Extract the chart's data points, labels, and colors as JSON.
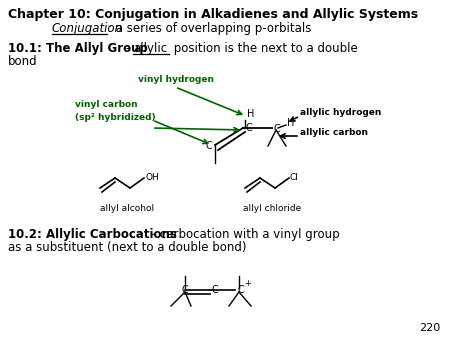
{
  "bg_color": "#ffffff",
  "title_line1": "Chapter 10: Conjugation in Alkadienes and Allylic Systems",
  "title_line2_italic": "Conjugation",
  "title_line2_rest": ": a series of overlapping p-orbitals",
  "section1_bold": "10.1: The Allyl Group",
  "vinyl_hydrogen_label": "vinyl hydrogen",
  "vinyl_carbon_label": "vinyl carbon\n(sp² hybridized)",
  "allylic_hydrogen_label": "allylic hydrogen",
  "allylic_carbon_label": "allylic carbon",
  "allyl_alcohol_label": "allyl alcohol",
  "allyl_chloride_label": "allyl chloride",
  "section2_bold": "10.2: Allylic Carbocations",
  "section2_rest": " - carbocation with a vinyl group\nas a substituent (next to a double bond)",
  "page_num": "220",
  "green_color": "#006400",
  "black_color": "#000000",
  "underline_color": "#000000"
}
